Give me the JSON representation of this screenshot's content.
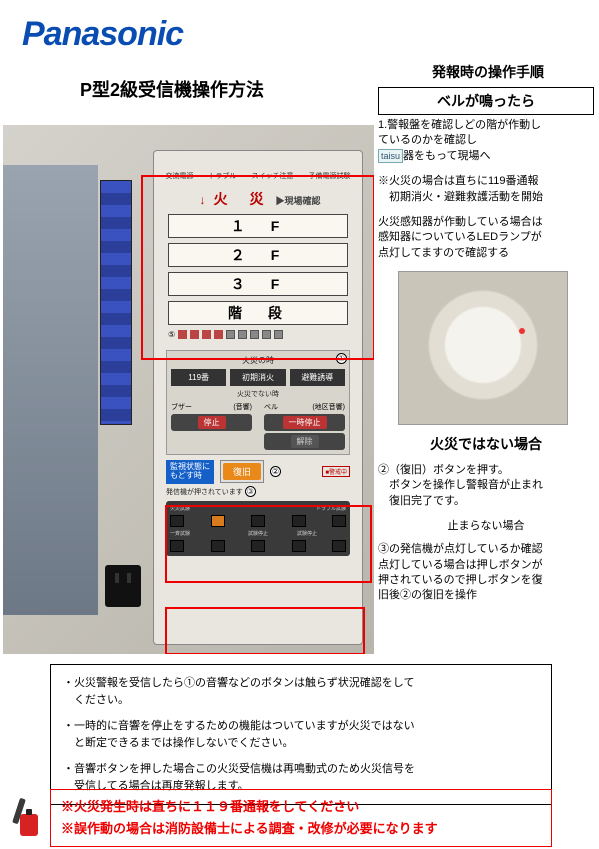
{
  "logo": {
    "text": "Panasonic",
    "color": "#0a4db2"
  },
  "title": "P型2級受信機操作方法",
  "procedure_title": "発報時の操作手順",
  "procedure_sub": "ベルが鳴ったら",
  "panel": {
    "status": [
      "交流電源",
      "トラブル",
      "スイッチ注意",
      "予備電源試験"
    ],
    "kasai": "火　災",
    "genba": "▶現場確認",
    "floors": [
      "１　F",
      "２　F",
      "３　F",
      "階　段"
    ],
    "circ5": "⑤",
    "section_fire": "火災の時",
    "circ1": "①",
    "btn119": [
      "119番",
      "初期消火",
      "避難誘導"
    ],
    "section_nofire": "火災でない時",
    "buzzer_head": "ブザー",
    "buzzer_sub": "(音響)",
    "bell_head": "ベル",
    "bell_sub": "(地区音響)",
    "stop_btn": "停止",
    "pause_btn": "一時停止",
    "kaijo_btn": "解除",
    "warn_badge": "■警戒中",
    "monitor": "監視状態に\nもどす時",
    "fukkyu": "復旧",
    "circ2": "②",
    "hasshin": "発信機が押されています",
    "circ3": "③",
    "dark_labels": [
      "火災試験",
      "",
      "",
      "",
      "トラブル試験"
    ],
    "dark_row2": [
      "一斉試験",
      "",
      "試験停止",
      "試験停止",
      ""
    ]
  },
  "right": {
    "p1a": "1.警報盤を確認しどの階が作動し",
    "p1b": "ているのかを確認し",
    "taisu": "taisu",
    "p1c": "器をもって現場へ",
    "p2": "※火災の場合は直ちに119番通報\n　初期消火・避難救護活動を開始",
    "p3": "火災感知器が作動している場合は\n感知器についているLEDランプが\n点灯してますので確認する",
    "sub2": "火災ではない場合",
    "p4": "②（復旧）ボタンを押す。\n　ボタンを操作し警報音が止まれ\n　復旧完了です。",
    "stop": "止まらない場合",
    "p5": "③の発信機が点灯しているか確認\n点灯している場合は押しボタンが\n押されているので押しボタンを復\n旧後②の復旧を操作"
  },
  "notes": [
    "・火災警報を受信したら①の音響などのボタンは触らず状況確認をして\n　ください。",
    "・一時的に音響を停止をするための機能はついていますが火災ではない\n　と断定できるまでは操作しないでください。",
    "・音響ボタンを押した場合この火災受信機は再鳴動式のため火災信号を\n　受信してる場合は再度発報します。"
  ],
  "warn": [
    "※火災発生時は直ちに１１９番通報をしてください",
    "※誤作動の場合は消防設備士による調査・改修が必要になります"
  ],
  "colors": {
    "logo": "#0a4db2",
    "red": "#e00000",
    "orange": "#e8891a"
  }
}
